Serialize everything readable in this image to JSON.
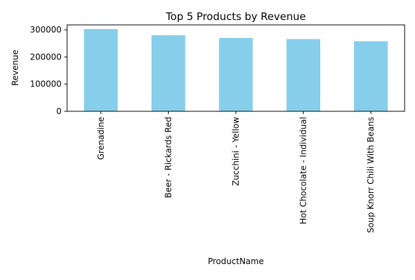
{
  "chart_data": {
    "type": "bar",
    "title": "Top 5 Products by Revenue",
    "xlabel": "ProductName",
    "ylabel": "Revenue",
    "categories": [
      "Grenadine",
      "Beer - Rickards Red",
      "Zucchini - Yellow",
      "Hot Chocolate - Individual",
      "Soup Knorr Chili With Beans"
    ],
    "values": [
      303000,
      280000,
      270000,
      266000,
      258000
    ],
    "ylim": [
      0,
      318150
    ],
    "yticks": [
      0,
      100000,
      200000,
      300000
    ],
    "bar_color": "#87ceeb",
    "grid": false,
    "legend": false
  }
}
